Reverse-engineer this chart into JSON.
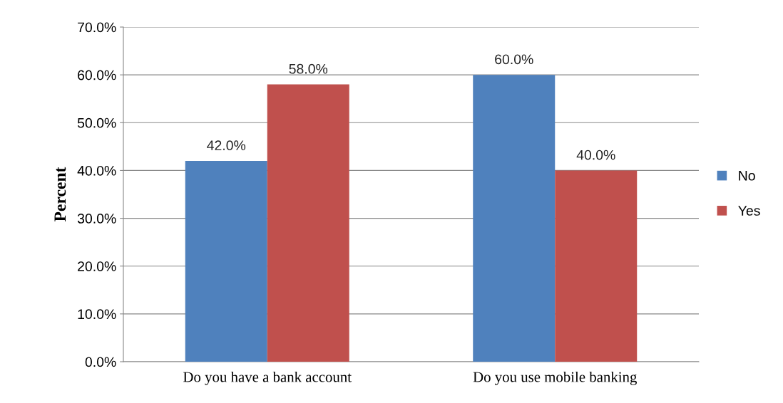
{
  "chart_data": {
    "type": "bar",
    "ylabel": "Percent",
    "categories": [
      "Do you have a bank account",
      "Do you use mobile banking"
    ],
    "series": [
      {
        "name": "No",
        "color": "#4f81bd",
        "values": [
          42,
          60
        ],
        "value_labels": [
          "42.0%",
          "60.0%"
        ]
      },
      {
        "name": "Yes",
        "color": "#c0504d",
        "values": [
          58,
          40
        ],
        "value_labels": [
          "58.0%",
          "40.0%"
        ]
      }
    ],
    "ylim": [
      0,
      70
    ],
    "yticks": [
      {
        "value": 0,
        "label": "0.0%"
      },
      {
        "value": 10,
        "label": "10.0%"
      },
      {
        "value": 20,
        "label": "20.0%"
      },
      {
        "value": 30,
        "label": "30.0%"
      },
      {
        "value": 40,
        "label": "40.0%"
      },
      {
        "value": 50,
        "label": "50.0%"
      },
      {
        "value": 60,
        "label": "60.0%"
      },
      {
        "value": 70,
        "label": "70.0%"
      }
    ],
    "grid": "y",
    "legend": "right"
  }
}
